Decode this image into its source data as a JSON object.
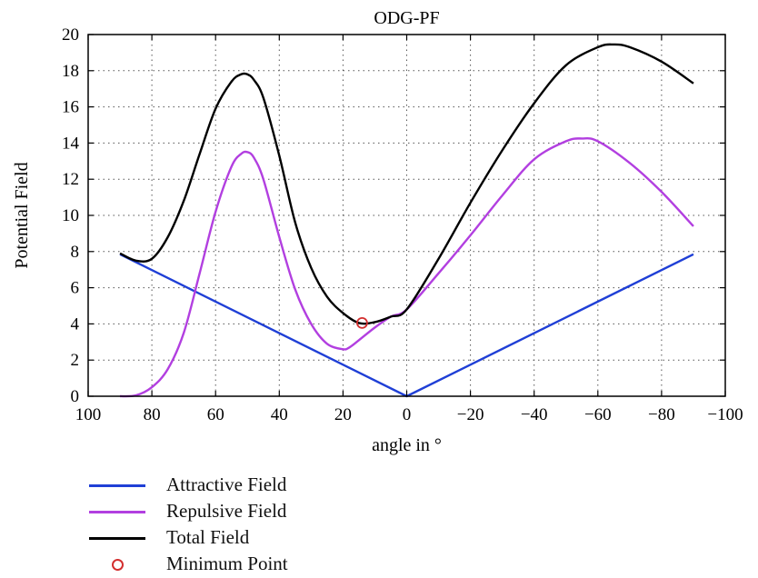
{
  "chart_data": {
    "type": "line",
    "title": "ODG-PF",
    "xlabel": "angle in °",
    "ylabel": "Potential Field",
    "xlim": [
      100,
      -100
    ],
    "ylim": [
      0,
      20
    ],
    "x_ticks": [
      100,
      80,
      60,
      40,
      20,
      0,
      -20,
      -40,
      -60,
      -80,
      -100
    ],
    "x_tick_labels": [
      "100",
      "80",
      "60",
      "40",
      "20",
      "0",
      "−20",
      "−40",
      "−60",
      "−80",
      "−100"
    ],
    "y_ticks": [
      0,
      2,
      4,
      6,
      8,
      10,
      12,
      14,
      16,
      18,
      20
    ],
    "y_tick_labels": [
      "0",
      "2",
      "4",
      "6",
      "8",
      "10",
      "12",
      "14",
      "16",
      "18",
      "20"
    ],
    "grid": true,
    "legend_position": "below",
    "series": [
      {
        "name": "Attractive Field",
        "color": "#1f3fd6",
        "x": [
          90,
          0,
          -90
        ],
        "y": [
          7.85,
          0,
          7.85
        ]
      },
      {
        "name": "Repulsive Field",
        "color": "#b23fe0",
        "x": [
          90,
          85,
          80,
          75,
          70,
          65,
          60,
          55,
          52,
          50,
          48,
          45,
          40,
          35,
          30,
          25,
          20,
          18,
          15,
          10,
          5,
          0,
          -10,
          -20,
          -30,
          -40,
          -50,
          -55,
          -60,
          -70,
          -80,
          -90
        ],
        "y": [
          0.0,
          0.05,
          0.5,
          1.5,
          3.5,
          6.8,
          10.2,
          12.7,
          13.4,
          13.5,
          13.2,
          12.0,
          8.8,
          5.9,
          4.0,
          2.9,
          2.6,
          2.7,
          3.1,
          3.8,
          4.4,
          4.8,
          6.8,
          8.9,
          11.1,
          13.1,
          14.1,
          14.25,
          14.1,
          12.9,
          11.3,
          9.4
        ]
      },
      {
        "name": "Total Field",
        "color": "#000000",
        "x": [
          90,
          85,
          80,
          75,
          70,
          65,
          60,
          55,
          52,
          50,
          48,
          45,
          40,
          35,
          30,
          25,
          20,
          15,
          10,
          5,
          0,
          -10,
          -20,
          -30,
          -40,
          -50,
          -60,
          -65,
          -70,
          -80,
          -90
        ],
        "y": [
          7.9,
          7.5,
          7.6,
          8.8,
          10.8,
          13.4,
          15.9,
          17.4,
          17.8,
          17.8,
          17.5,
          16.5,
          13.3,
          9.6,
          7.1,
          5.5,
          4.6,
          4.05,
          4.1,
          4.4,
          4.8,
          7.6,
          10.7,
          13.6,
          16.2,
          18.3,
          19.3,
          19.45,
          19.3,
          18.5,
          17.3
        ]
      },
      {
        "name": "Minimum Point",
        "color": "#d32f2f",
        "marker": "circle",
        "x": [
          14
        ],
        "y": [
          4.05
        ]
      }
    ]
  }
}
